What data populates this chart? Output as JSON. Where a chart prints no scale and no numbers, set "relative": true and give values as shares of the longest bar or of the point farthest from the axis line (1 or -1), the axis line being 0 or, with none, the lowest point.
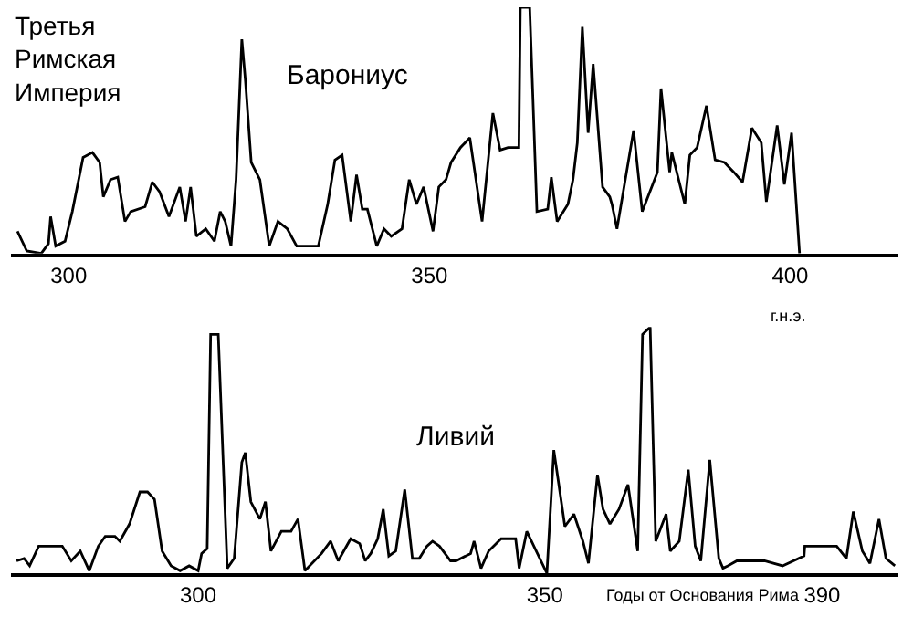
{
  "chart_data": [
    {
      "type": "line",
      "relative": true,
      "xlabel": "г.н.э.",
      "xlim": [
        292,
        415
      ],
      "xticks": [
        300,
        350,
        400
      ],
      "marker": "none",
      "line_style": "solid",
      "annotations": [
        "Третья Римская Империя"
      ],
      "series": [
        {
          "name": "Барониус",
          "color": "#000000",
          "x": [
            292.9,
            294.2,
            296.2,
            297.2,
            297.5,
            298.2,
            299.5,
            300.5,
            302.0,
            303.3,
            304.3,
            304.8,
            305.8,
            306.8,
            307.8,
            308.6,
            310.6,
            311.6,
            312.6,
            313.9,
            315.4,
            316.2,
            316.9,
            317.7,
            319.0,
            320.2,
            321.0,
            321.7,
            322.5,
            323.2,
            324.0,
            324.5,
            325.3,
            326.5,
            327.8,
            329.0,
            330.3,
            331.6,
            334.6,
            335.9,
            336.9,
            337.9,
            339.1,
            339.9,
            340.7,
            341.4,
            342.7,
            343.7,
            344.7,
            346.2,
            347.2,
            348.2,
            349.2,
            350.5,
            351.3,
            352.3,
            353.0,
            354.3,
            355.6,
            357.3,
            358.8,
            359.8,
            360.9,
            362.4,
            362.6,
            363.9,
            364.9,
            366.4,
            366.9,
            367.7,
            369.2,
            369.9,
            370.5,
            371.2,
            372.0,
            372.7,
            374.0,
            375.0,
            375.3,
            376.0,
            378.3,
            379.5,
            381.6,
            382.1,
            383.3,
            383.6,
            385.4,
            386.1,
            387.1,
            388.4,
            389.6,
            390.9,
            392.2,
            393.4,
            394.7,
            396.0,
            396.7,
            398.2,
            399.2,
            400.2,
            401.3
          ],
          "values": [
            0.09,
            0.01,
            0,
            0.04,
            0.15,
            0.03,
            0.05,
            0.17,
            0.39,
            0.41,
            0.37,
            0.23,
            0.3,
            0.31,
            0.13,
            0.17,
            0.19,
            0.29,
            0.25,
            0.15,
            0.27,
            0.13,
            0.27,
            0.07,
            0.1,
            0.05,
            0.17,
            0.13,
            0.03,
            0.3,
            0.87,
            0.7,
            0.37,
            0.3,
            0.03,
            0.13,
            0.1,
            0.03,
            0.03,
            0.2,
            0.38,
            0.4,
            0.13,
            0.32,
            0.18,
            0.18,
            0.03,
            0.1,
            0.07,
            0.1,
            0.3,
            0.2,
            0.27,
            0.09,
            0.27,
            0.3,
            0.37,
            0.43,
            0.47,
            0.13,
            0.57,
            0.42,
            0.43,
            0.43,
            1,
            1,
            0.17,
            0.18,
            0.31,
            0.13,
            0.2,
            0.3,
            0.45,
            0.92,
            0.49,
            0.77,
            0.27,
            0.23,
            0.2,
            0.1,
            0.5,
            0.17,
            0.33,
            0.67,
            0.33,
            0.41,
            0.2,
            0.4,
            0.43,
            0.6,
            0.38,
            0.37,
            0.33,
            0.29,
            0.51,
            0.45,
            0.21,
            0.52,
            0.28,
            0.49,
            0
          ]
        }
      ]
    },
    {
      "type": "line",
      "relative": true,
      "xlabel": "Годы от Основания Рима",
      "xlim": [
        273,
        401
      ],
      "xticks": [
        300,
        350,
        390
      ],
      "marker": "none",
      "line_style": "solid",
      "series": [
        {
          "name": "Ливий",
          "color": "#000000",
          "x": [
            273.8,
            274.9,
            275.7,
            277.0,
            278.3,
            280.4,
            281.7,
            283.0,
            284.3,
            285.6,
            286.6,
            288.0,
            288.7,
            290.1,
            291.6,
            292.7,
            293.7,
            294.8,
            296.1,
            297.4,
            298.7,
            300.0,
            300.5,
            301.3,
            301.8,
            302.9,
            304.2,
            305.2,
            306.3,
            306.8,
            307.6,
            308.9,
            309.7,
            310.5,
            312.0,
            313.4,
            314.4,
            315.4,
            317.8,
            319.1,
            320.2,
            322.0,
            323.3,
            324.1,
            324.9,
            325.9,
            326.7,
            327.5,
            328.5,
            329.8,
            330.9,
            331.9,
            333.0,
            333.8,
            334.8,
            335.6,
            336.4,
            337.2,
            339.3,
            339.8,
            340.8,
            341.9,
            343.7,
            345.8,
            346.3,
            347.4,
            350.3,
            351.3,
            352.9,
            354.2,
            355.5,
            356.3,
            357.6,
            358.4,
            359.4,
            360.7,
            362.0,
            363.4,
            364.1,
            365.2,
            366.0,
            367.5,
            368.1,
            369.4,
            370.7,
            371.7,
            372.5,
            373.8,
            375.1,
            375.7,
            376.4,
            377.7,
            381.7,
            384.3,
            387.4,
            387.5,
            389.5,
            392.1,
            393.5,
            394.5,
            395.8,
            396.9,
            398.2,
            399.2,
            400.5
          ],
          "values": [
            0.05,
            0.06,
            0.03,
            0.11,
            0.11,
            0.11,
            0.05,
            0.09,
            0.01,
            0.11,
            0.15,
            0.15,
            0.13,
            0.2,
            0.33,
            0.33,
            0.3,
            0.09,
            0.03,
            0.01,
            0.03,
            0.01,
            0.08,
            0.1,
            0.97,
            0.97,
            0.02,
            0.06,
            0.45,
            0.49,
            0.29,
            0.22,
            0.29,
            0.09,
            0.17,
            0.17,
            0.22,
            0.01,
            0.08,
            0.13,
            0.05,
            0.14,
            0.12,
            0.05,
            0.08,
            0.14,
            0.26,
            0.07,
            0.09,
            0.34,
            0.06,
            0.06,
            0.11,
            0.13,
            0.11,
            0.08,
            0.05,
            0.05,
            0.08,
            0.13,
            0.02,
            0.09,
            0.14,
            0.14,
            0.02,
            0.17,
            0,
            0.5,
            0.19,
            0.24,
            0.13,
            0.04,
            0.4,
            0.26,
            0.2,
            0.26,
            0.36,
            0.09,
            0.97,
            1,
            0.13,
            0.24,
            0.09,
            0.13,
            0.42,
            0.11,
            0.05,
            0.46,
            0.06,
            0.02,
            0.03,
            0.05,
            0.05,
            0.03,
            0.07,
            0.11,
            0.11,
            0.11,
            0.06,
            0.25,
            0.09,
            0.04,
            0.22,
            0.06,
            0.03
          ]
        }
      ]
    }
  ]
}
